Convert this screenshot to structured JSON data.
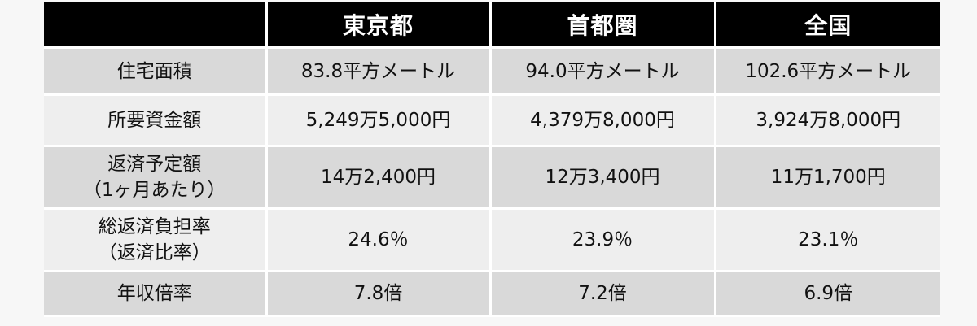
{
  "table": {
    "header": {
      "corner": "",
      "columns": [
        "東京都",
        "首都圏",
        "全国"
      ]
    },
    "rows": [
      {
        "label_lines": [
          "住宅面積"
        ],
        "values": [
          "83.8平方メートル",
          "94.0平方メートル",
          "102.6平方メートル"
        ]
      },
      {
        "label_lines": [
          "所要資金額"
        ],
        "values": [
          "5,249万5,000円",
          "4,379万8,000円",
          "3,924万8,000円"
        ]
      },
      {
        "label_lines": [
          "返済予定額",
          "（1ヶ月あたり）"
        ],
        "values": [
          "14万2,400円",
          "12万3,400円",
          "11万1,700円"
        ]
      },
      {
        "label_lines": [
          "総返済負担率",
          "（返済比率）"
        ],
        "values": [
          "24.6％",
          "23.9％",
          "23.1％"
        ]
      },
      {
        "label_lines": [
          "年収倍率"
        ],
        "values": [
          "7.8倍",
          "7.2倍",
          "6.9倍"
        ]
      }
    ]
  },
  "colors": {
    "header_bg": "#000000",
    "header_text": "#ffffff",
    "row_dark": "#d9d9d9",
    "row_light": "#eeeeee"
  }
}
